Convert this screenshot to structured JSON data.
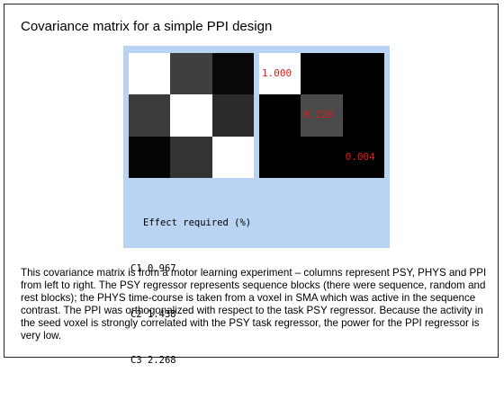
{
  "title": "Covariance matrix for a simple PPI design",
  "left_matrix": {
    "cells": [
      [
        "#ffffff",
        "#3f3f3f",
        "#080808"
      ],
      [
        "#3b3b3b",
        "#ffffff",
        "#2a2a2a"
      ],
      [
        "#050505",
        "#333333",
        "#ffffff"
      ]
    ]
  },
  "right_matrix": {
    "diagonal": [
      {
        "label": "1.000",
        "color": "#ffffff"
      },
      {
        "label": "0.226",
        "color": "#4a4a4a"
      },
      {
        "label": "0.004",
        "color": "#000000"
      }
    ]
  },
  "effect": {
    "header": "Effect required (%)",
    "rows": [
      {
        "name": "C1",
        "value": "0.967"
      },
      {
        "name": "C2",
        "value": "1.438"
      },
      {
        "name": "C3",
        "value": "2.268"
      }
    ]
  },
  "description": "This covariance matrix is from a motor learning experiment – columns represent PSY, PHYS and PPI from left to right. The PSY regressor represents sequence blocks (there were sequence, random and rest blocks); the PHYS time-course is taken from a voxel in SMA which was active in the sequence contrast. The PPI was orthogonalized with respect to the task PSY regressor. Because the activity in the seed voxel is strongly correlated with the PSY task regressor, the power for the PPI regressor is very low."
}
